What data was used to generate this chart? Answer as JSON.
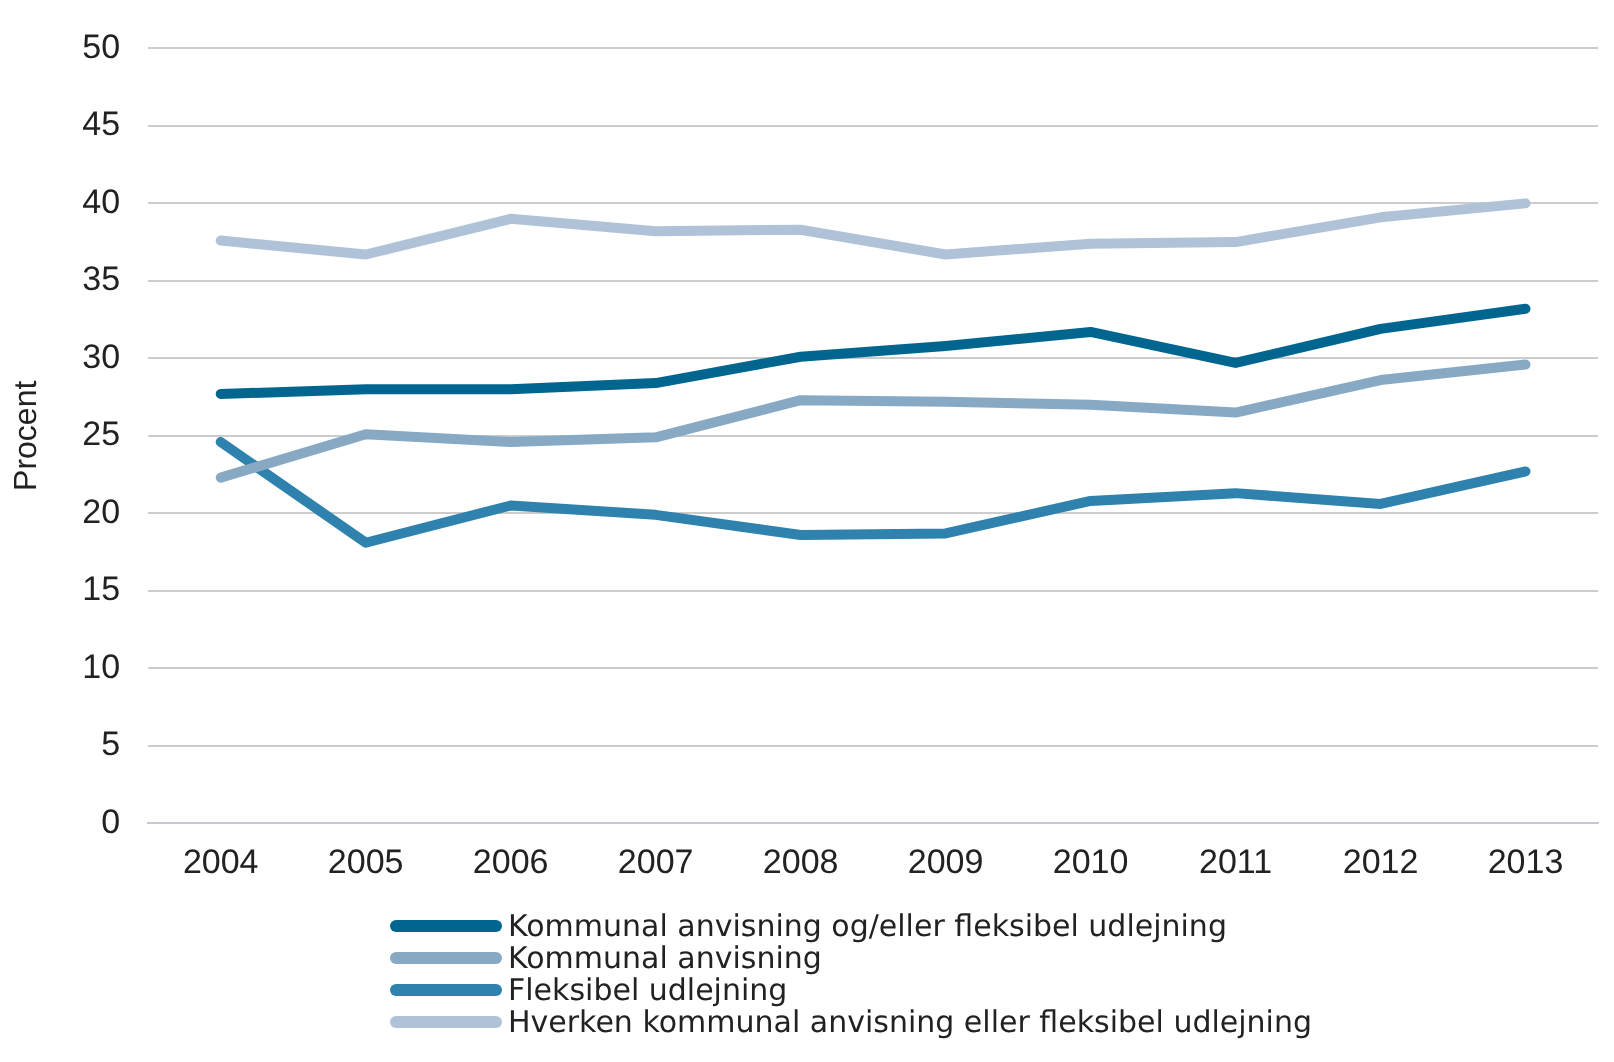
{
  "chart_data": {
    "type": "line",
    "ylabel": "Procent",
    "categories": [
      "2004",
      "2005",
      "2006",
      "2007",
      "2008",
      "2009",
      "2010",
      "2011",
      "2012",
      "2013"
    ],
    "series": [
      {
        "name": "Kommunal anvisning og/eller fleksibel udlejning",
        "color": "#00668f",
        "values": [
          27.7,
          28.0,
          28.0,
          28.4,
          30.1,
          30.8,
          31.7,
          29.7,
          31.9,
          33.2
        ]
      },
      {
        "name": "Kommunal anvisning",
        "color": "#87a9c4",
        "values": [
          22.3,
          25.1,
          24.6,
          24.9,
          27.3,
          27.2,
          27.0,
          26.5,
          28.6,
          29.6
        ]
      },
      {
        "name": "Fleksibel udlejning",
        "color": "#2e82ad",
        "values": [
          24.6,
          18.1,
          20.5,
          19.9,
          18.6,
          18.7,
          20.8,
          21.3,
          20.6,
          22.7
        ]
      },
      {
        "name": "Hverken kommunal anvisning eller fleksibel udlejning",
        "color": "#b0c2d8",
        "values": [
          37.6,
          36.7,
          39.0,
          38.2,
          38.3,
          36.7,
          37.4,
          37.5,
          39.1,
          40.0
        ]
      }
    ],
    "ylim": [
      0,
      50
    ],
    "yticks": [
      0,
      5,
      10,
      15,
      20,
      25,
      30,
      35,
      40,
      45,
      50
    ],
    "grid": "y",
    "legend": "bottom",
    "marker": "none",
    "line_style": "solid"
  }
}
